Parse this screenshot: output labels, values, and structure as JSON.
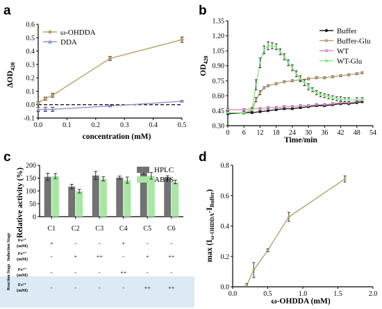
{
  "colors": {
    "olive": "#b8a06a",
    "blue": "#8a93d8",
    "black": "#1a1a1a",
    "pink": "#d992c6",
    "green": "#88ea86",
    "gray": "#727272",
    "lightgreen": "#a8e6a3",
    "stage_bg": "#dde9f5"
  },
  "chart_data": [
    {
      "panel": "a",
      "type": "line",
      "xlabel": "concentration (mM)",
      "ylabel": "ΔOD420",
      "xlim": [
        0.0,
        0.5
      ],
      "ylim": [
        -0.1,
        0.6
      ],
      "xticks": [
        "0.0",
        "0.1",
        "0.2",
        "0.3",
        "0.4",
        "0.5"
      ],
      "yticks": [
        "-0.1",
        "0.0",
        "0.1",
        "0.2",
        "0.3",
        "0.4",
        "0.5",
        "0.6"
      ],
      "legend_position": "top-left",
      "reference_line": 0,
      "series": [
        {
          "name": "ω-OHDDA",
          "color": "#b8a06a",
          "marker": "circle",
          "x": [
            0.0,
            0.025,
            0.05,
            0.25,
            0.5
          ],
          "y": [
            0.012,
            0.045,
            0.07,
            0.345,
            0.485
          ],
          "err": [
            0.01,
            0.012,
            0.015,
            0.015,
            0.02
          ]
        },
        {
          "name": "DDA",
          "color": "#8a93d8",
          "marker": "triangle",
          "x": [
            0.0,
            0.025,
            0.05,
            0.25,
            0.5
          ],
          "y": [
            -0.035,
            -0.035,
            -0.035,
            -0.01,
            0.025
          ],
          "err": [
            0.015,
            0.015,
            0.015,
            0.005,
            0.005
          ]
        }
      ]
    },
    {
      "panel": "b",
      "type": "line",
      "xlabel": "Time/min",
      "ylabel": "OD420",
      "xlim": [
        0,
        54
      ],
      "ylim": [
        0.3,
        1.35
      ],
      "xticks": [
        "0",
        "6",
        "12",
        "18",
        "24",
        "30",
        "36",
        "42",
        "48",
        "54"
      ],
      "yticks": [
        "0.30",
        "0.45",
        "0.60",
        "0.75",
        "0.90",
        "1.05",
        "1.20",
        "1.35"
      ],
      "legend_position": "top-right",
      "series": [
        {
          "name": "Buffer",
          "color": "#1a1a1a",
          "marker": "circle",
          "x": [
            0,
            6,
            9,
            12,
            15,
            18,
            21,
            24,
            27,
            30,
            33,
            36,
            39,
            42,
            45,
            48,
            50
          ],
          "y": [
            0.42,
            0.43,
            0.43,
            0.44,
            0.45,
            0.46,
            0.47,
            0.47,
            0.48,
            0.49,
            0.5,
            0.5,
            0.51,
            0.52,
            0.52,
            0.53,
            0.54
          ],
          "err": [
            0.01,
            0.01,
            0.01,
            0.01,
            0.01,
            0.01,
            0.01,
            0.01,
            0.01,
            0.01,
            0.01,
            0.01,
            0.01,
            0.01,
            0.01,
            0.01,
            0.01
          ]
        },
        {
          "name": "Buffer-Glu",
          "color": "#b8a06a",
          "marker": "circle",
          "x": [
            0,
            6,
            9,
            10.5,
            12,
            13.5,
            15,
            18,
            21,
            24,
            27,
            30,
            33,
            36,
            39,
            42,
            45,
            48,
            50
          ],
          "y": [
            0.43,
            0.43,
            0.45,
            0.56,
            0.63,
            0.68,
            0.7,
            0.72,
            0.74,
            0.75,
            0.76,
            0.77,
            0.78,
            0.78,
            0.79,
            0.8,
            0.81,
            0.82,
            0.83
          ],
          "err": [
            0.01,
            0.01,
            0.01,
            0.02,
            0.02,
            0.01,
            0.01,
            0.01,
            0.01,
            0.01,
            0.01,
            0.01,
            0.01,
            0.01,
            0.01,
            0.01,
            0.01,
            0.01,
            0.01
          ]
        },
        {
          "name": "WT",
          "color": "#d992c6",
          "marker": "circle",
          "x": [
            0,
            6,
            9,
            12,
            15,
            18,
            21,
            24,
            27,
            30,
            33,
            36,
            39,
            42,
            45,
            48,
            50
          ],
          "y": [
            0.46,
            0.46,
            0.47,
            0.47,
            0.48,
            0.48,
            0.49,
            0.49,
            0.5,
            0.5,
            0.51,
            0.51,
            0.52,
            0.53,
            0.53,
            0.54,
            0.55
          ],
          "err": [
            0.01,
            0.01,
            0.01,
            0.01,
            0.01,
            0.01,
            0.01,
            0.01,
            0.01,
            0.01,
            0.01,
            0.01,
            0.01,
            0.01,
            0.01,
            0.01,
            0.01
          ]
        },
        {
          "name": "WT-Glu",
          "color": "#88ea86",
          "marker": "circle",
          "x": [
            0,
            6,
            9,
            10.5,
            12,
            13.5,
            15,
            16.5,
            18,
            19.5,
            21,
            22.5,
            24,
            25.5,
            27,
            28.5,
            30,
            31.5,
            33,
            34.5,
            36,
            37.5,
            39,
            40.5,
            42,
            43.5,
            45,
            48,
            50
          ],
          "y": [
            0.43,
            0.43,
            0.46,
            0.71,
            0.93,
            1.06,
            1.1,
            1.1,
            1.09,
            1.04,
            0.99,
            0.93,
            0.88,
            0.82,
            0.77,
            0.73,
            0.69,
            0.66,
            0.63,
            0.61,
            0.6,
            0.59,
            0.58,
            0.57,
            0.57,
            0.56,
            0.56,
            0.56,
            0.56
          ],
          "err": [
            0.01,
            0.01,
            0.02,
            0.05,
            0.05,
            0.04,
            0.04,
            0.03,
            0.03,
            0.03,
            0.03,
            0.03,
            0.03,
            0.03,
            0.03,
            0.03,
            0.03,
            0.02,
            0.02,
            0.02,
            0.02,
            0.02,
            0.02,
            0.02,
            0.02,
            0.02,
            0.02,
            0.02,
            0.02
          ]
        }
      ]
    },
    {
      "panel": "c",
      "type": "bar",
      "ylabel": "Relative activity (%)",
      "ylim": [
        0,
        200
      ],
      "yticks": [
        "0",
        "50",
        "100",
        "150",
        "200"
      ],
      "categories": [
        "C1",
        "C2",
        "C3",
        "C4",
        "C5",
        "C6"
      ],
      "legend_position": "top-right",
      "series": [
        {
          "name": "HPLC",
          "color": "#727272",
          "values": [
            155,
            117,
            160,
            152,
            170,
            151
          ],
          "err": [
            14,
            9,
            16,
            6,
            5,
            8
          ]
        },
        {
          "name": "ABTS",
          "color": "#a8e6a3",
          "values": [
            158,
            99,
            147,
            142,
            159,
            135
          ],
          "err": [
            10,
            7,
            8,
            12,
            13,
            7
          ]
        }
      ],
      "table": {
        "stages": [
          {
            "label": "Induction Stage",
            "rows": [
              {
                "label1": "Fe²⁺",
                "label2": "(mM)",
                "values": [
                  "+",
                  "-",
                  "-",
                  "+",
                  "-",
                  "-"
                ]
              },
              {
                "label1": "Fe³⁺",
                "label2": "(mM)",
                "values": [
                  "-",
                  "+",
                  "++",
                  "-",
                  "+",
                  "++"
                ]
              }
            ]
          },
          {
            "label": "Reaction Stage",
            "rows": [
              {
                "label1": "Fe²⁺",
                "label2": "(mM)",
                "values": [
                  "-",
                  "-",
                  "-",
                  "++",
                  "-",
                  "-"
                ]
              },
              {
                "label1": "Fe³⁺",
                "label2": "(mM)",
                "values": [
                  "-",
                  "-",
                  "-",
                  "-",
                  "++",
                  "++"
                ]
              }
            ]
          }
        ]
      }
    },
    {
      "panel": "d",
      "type": "line",
      "xlabel": "ω-OHDDA (mM)",
      "ylabel": "max (Iω-OHDDA-IBuffer)",
      "xlim": [
        0.0,
        2.0
      ],
      "ylim": [
        0.0,
        0.8
      ],
      "xticks": [
        "0.0",
        "0.5",
        "1.0",
        "1.5",
        "2.0"
      ],
      "yticks": [
        "0.0",
        "0.2",
        "0.4",
        "0.6",
        "0.8"
      ],
      "series": [
        {
          "color": "#b8a06a",
          "marker": "circle",
          "x": [
            0.2,
            0.3,
            0.5,
            0.8,
            1.6
          ],
          "y": [
            0.01,
            0.11,
            0.24,
            0.46,
            0.71
          ],
          "err": [
            0.01,
            0.05,
            0.01,
            0.03,
            0.02
          ]
        }
      ]
    }
  ],
  "panels": {
    "a": {
      "letter": "a",
      "ylabel_main": "ΔOD",
      "ylabel_sub": "420"
    },
    "b": {
      "letter": "b",
      "ylabel_main": "OD",
      "ylabel_sub": "420"
    },
    "c": {
      "letter": "c"
    },
    "d": {
      "letter": "d",
      "ylabel_prefix": "max (I",
      "ylabel_sub1": "ω-OHDDA",
      "ylabel_mid": "-I",
      "ylabel_sub2": "Buffer",
      "ylabel_suffix": ")"
    }
  }
}
